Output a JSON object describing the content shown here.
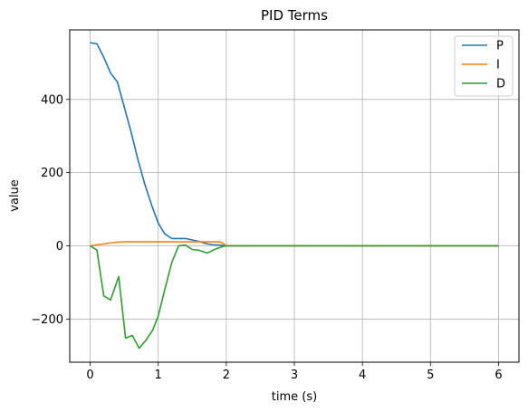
{
  "chart_data": {
    "type": "line",
    "title": "PID Terms",
    "xlabel": "time (s)",
    "ylabel": "value",
    "xlim": [
      -0.3,
      6.3
    ],
    "ylim": [
      -318,
      590
    ],
    "xticks": [
      0,
      1,
      2,
      3,
      4,
      5,
      6
    ],
    "xtick_labels": [
      "0",
      "1",
      "2",
      "3",
      "4",
      "5",
      "6"
    ],
    "yticks": [
      -200,
      0,
      200,
      400
    ],
    "ytick_labels": [
      "−200",
      "0",
      "200",
      "400"
    ],
    "grid": true,
    "legend_position": "top-right",
    "series": [
      {
        "name": "P",
        "color": "#1f77b4",
        "x": [
          0,
          0.1,
          0.2,
          0.3,
          0.4,
          0.5,
          0.6,
          0.7,
          0.8,
          0.9,
          1.0,
          1.1,
          1.2,
          1.3,
          1.4,
          1.5,
          1.6,
          1.7,
          1.8,
          1.9,
          2.0,
          2.5,
          3,
          4,
          5,
          6
        ],
        "y": [
          555,
          552,
          515,
          472,
          448,
          380,
          312,
          237,
          170,
          113,
          62,
          32,
          20,
          20,
          20,
          16,
          12,
          6,
          3,
          2,
          0,
          0,
          0,
          0,
          0,
          0
        ]
      },
      {
        "name": "I",
        "color": "#ff7f0e",
        "x": [
          0,
          0.1,
          0.2,
          0.3,
          0.4,
          0.5,
          0.7,
          1.0,
          1.3,
          1.6,
          1.9,
          1.95,
          2.0,
          2.5,
          3,
          4,
          5,
          6
        ],
        "y": [
          0,
          3,
          5,
          8,
          10,
          11,
          11,
          11,
          11,
          11,
          11,
          7,
          0,
          0,
          0,
          0,
          0,
          0
        ]
      },
      {
        "name": "D",
        "color": "#2ca02c",
        "x": [
          0,
          0.1,
          0.2,
          0.3,
          0.42,
          0.52,
          0.62,
          0.72,
          0.82,
          0.92,
          1.0,
          1.1,
          1.2,
          1.3,
          1.4,
          1.5,
          1.6,
          1.72,
          1.85,
          1.95,
          2.0,
          2.5,
          3,
          4,
          5,
          6
        ],
        "y": [
          0,
          -12,
          -137,
          -148,
          -84,
          -252,
          -245,
          -280,
          -258,
          -230,
          -192,
          -117,
          -45,
          0,
          2,
          -10,
          -12,
          -20,
          -8,
          -2,
          0,
          0,
          0,
          0,
          0,
          0
        ]
      }
    ]
  }
}
